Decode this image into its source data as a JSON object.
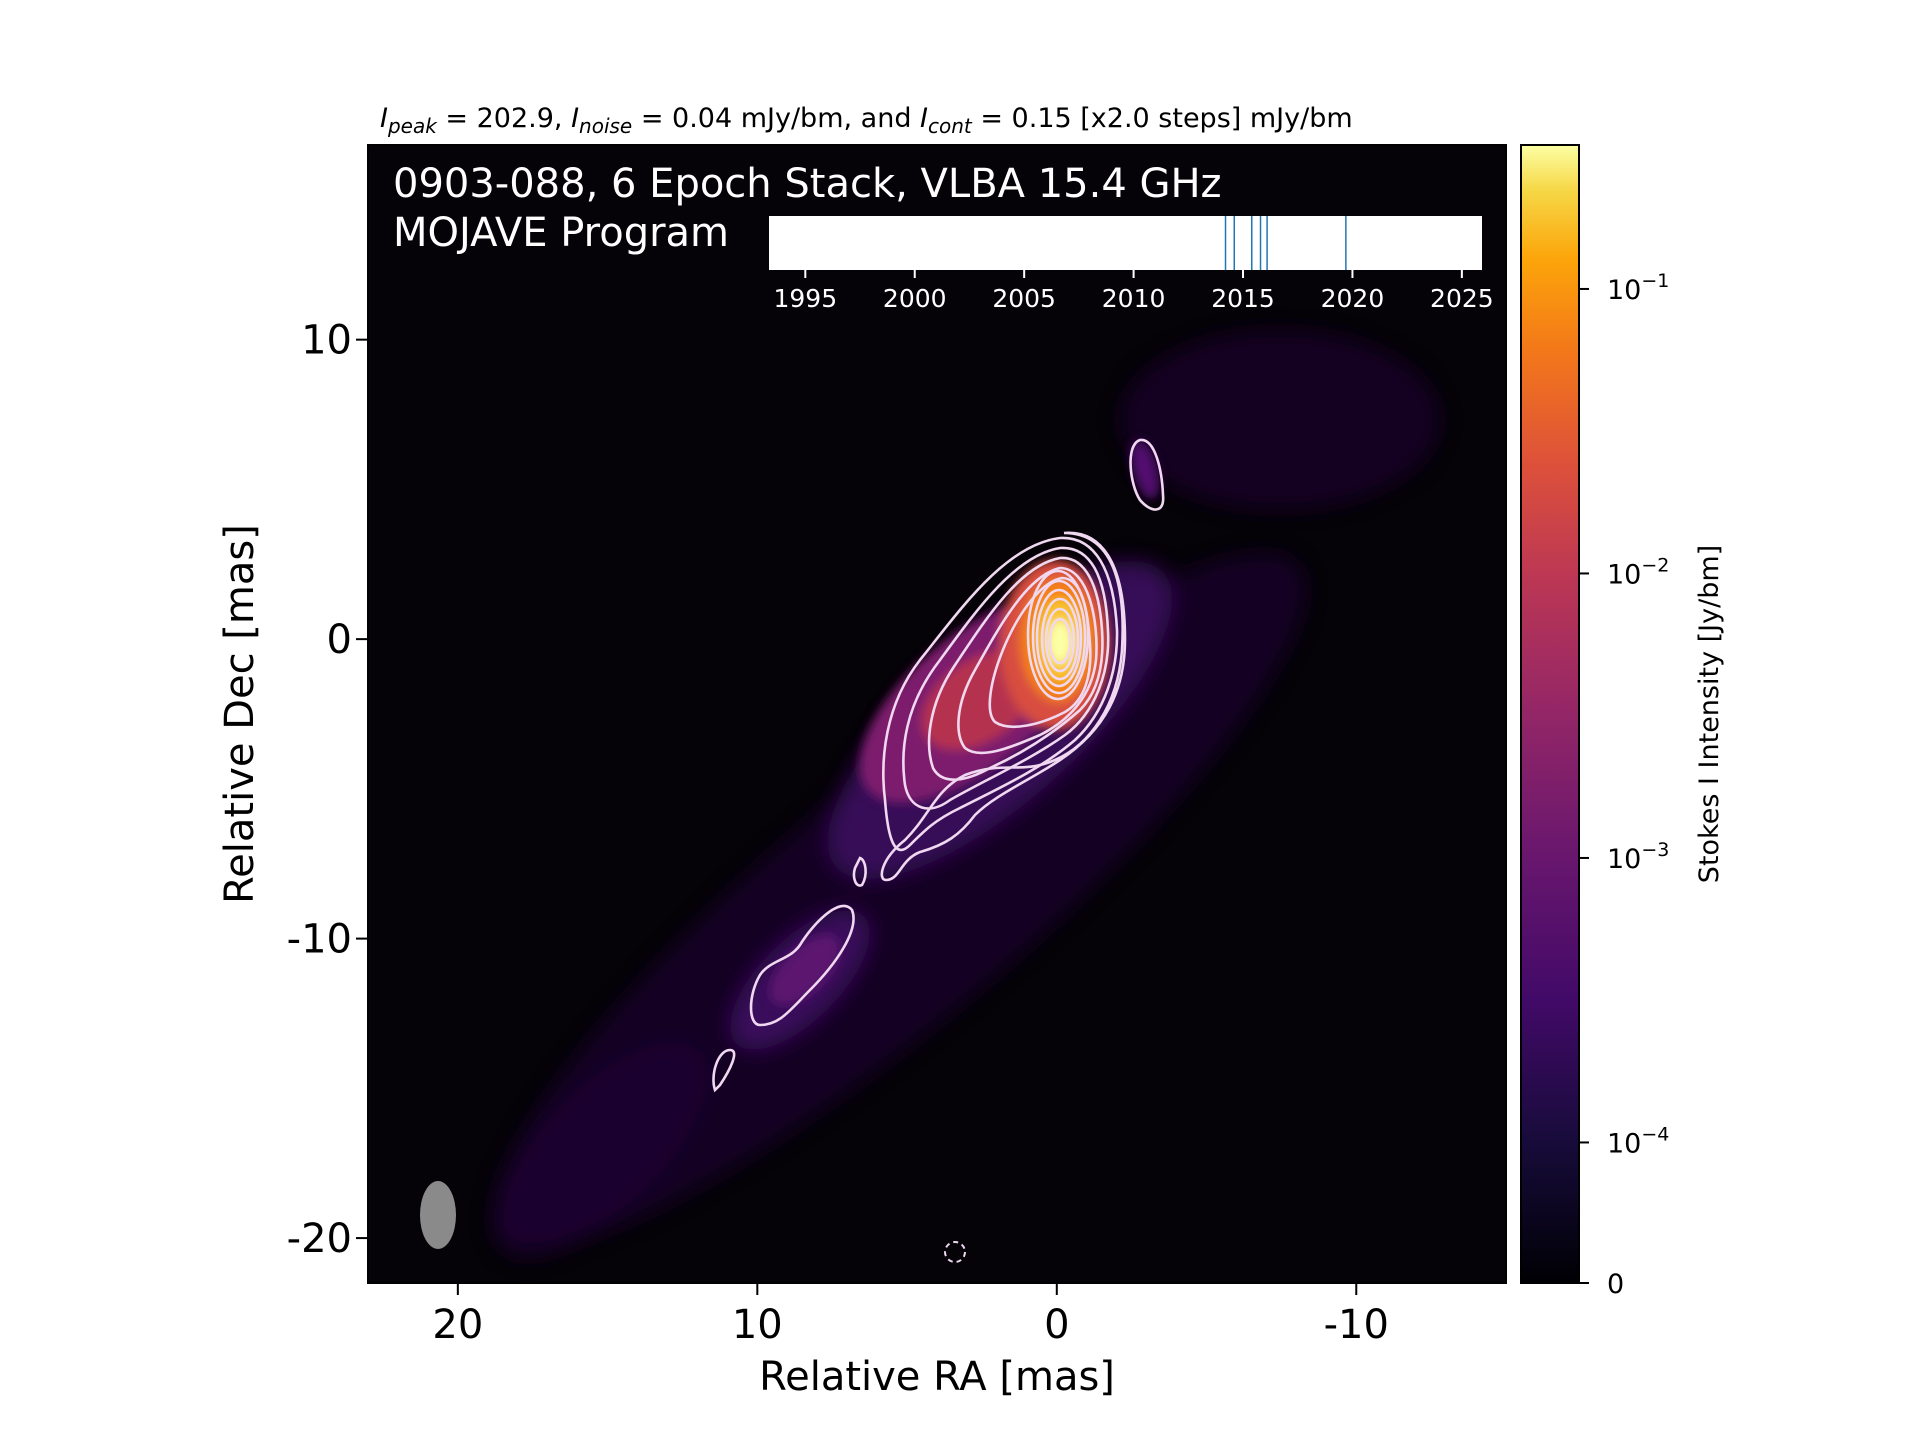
{
  "chart_data": {
    "type": "heatmap",
    "header": {
      "parts": [
        {
          "t": "I",
          "style": "italic"
        },
        {
          "t": "peak",
          "style": "sub"
        },
        {
          "t": " = 202.9, "
        },
        {
          "t": "I",
          "style": "italic"
        },
        {
          "t": "noise",
          "style": "sub"
        },
        {
          "t": " = 0.04 mJy/bm, and "
        },
        {
          "t": "I",
          "style": "italic"
        },
        {
          "t": "cont",
          "style": "sub"
        },
        {
          "t": " = 0.15 [x2.0 steps] mJy/bm"
        }
      ]
    },
    "title_line1": "0903-088, 6 Epoch Stack, VLBA 15.4 GHz",
    "title_line2": "MOJAVE Program",
    "xlabel": "Relative RA [mas]",
    "ylabel": "Relative Dec [mas]",
    "xlim": [
      23,
      -15
    ],
    "ylim": [
      -21.5,
      16.5
    ],
    "x_ticks": [
      20,
      10,
      0,
      -10
    ],
    "y_ticks": [
      10,
      0,
      -10,
      -20
    ],
    "colorbar": {
      "label": "Stokes I Intensity [Jy/bm]",
      "scale": "symlog",
      "range": [
        0,
        0.2029
      ],
      "ticks": [
        {
          "base": "0",
          "exp": ""
        },
        {
          "base": "10",
          "exp": "−4"
        },
        {
          "base": "10",
          "exp": "−3"
        },
        {
          "base": "10",
          "exp": "−2"
        },
        {
          "base": "10",
          "exp": "−1"
        }
      ],
      "colormap": "inferno"
    },
    "peak_mJy_per_beam": 202.9,
    "noise_mJy_per_beam": 0.04,
    "lowest_contour_mJy_per_beam": 0.15,
    "contour_step_factor": 2.0,
    "contour_color": "#f0d8f0",
    "beam": {
      "major_mas": 2.4,
      "minor_mas": 1.2,
      "pa_deg": 0
    },
    "epoch_timeline": {
      "ticks": [
        1995,
        2000,
        2005,
        2010,
        2015,
        2020,
        2025
      ],
      "epochs": [
        2014.2,
        2014.6,
        2015.4,
        2015.8,
        2016.1,
        2019.7
      ],
      "xlim": [
        1994,
        2026
      ]
    }
  }
}
